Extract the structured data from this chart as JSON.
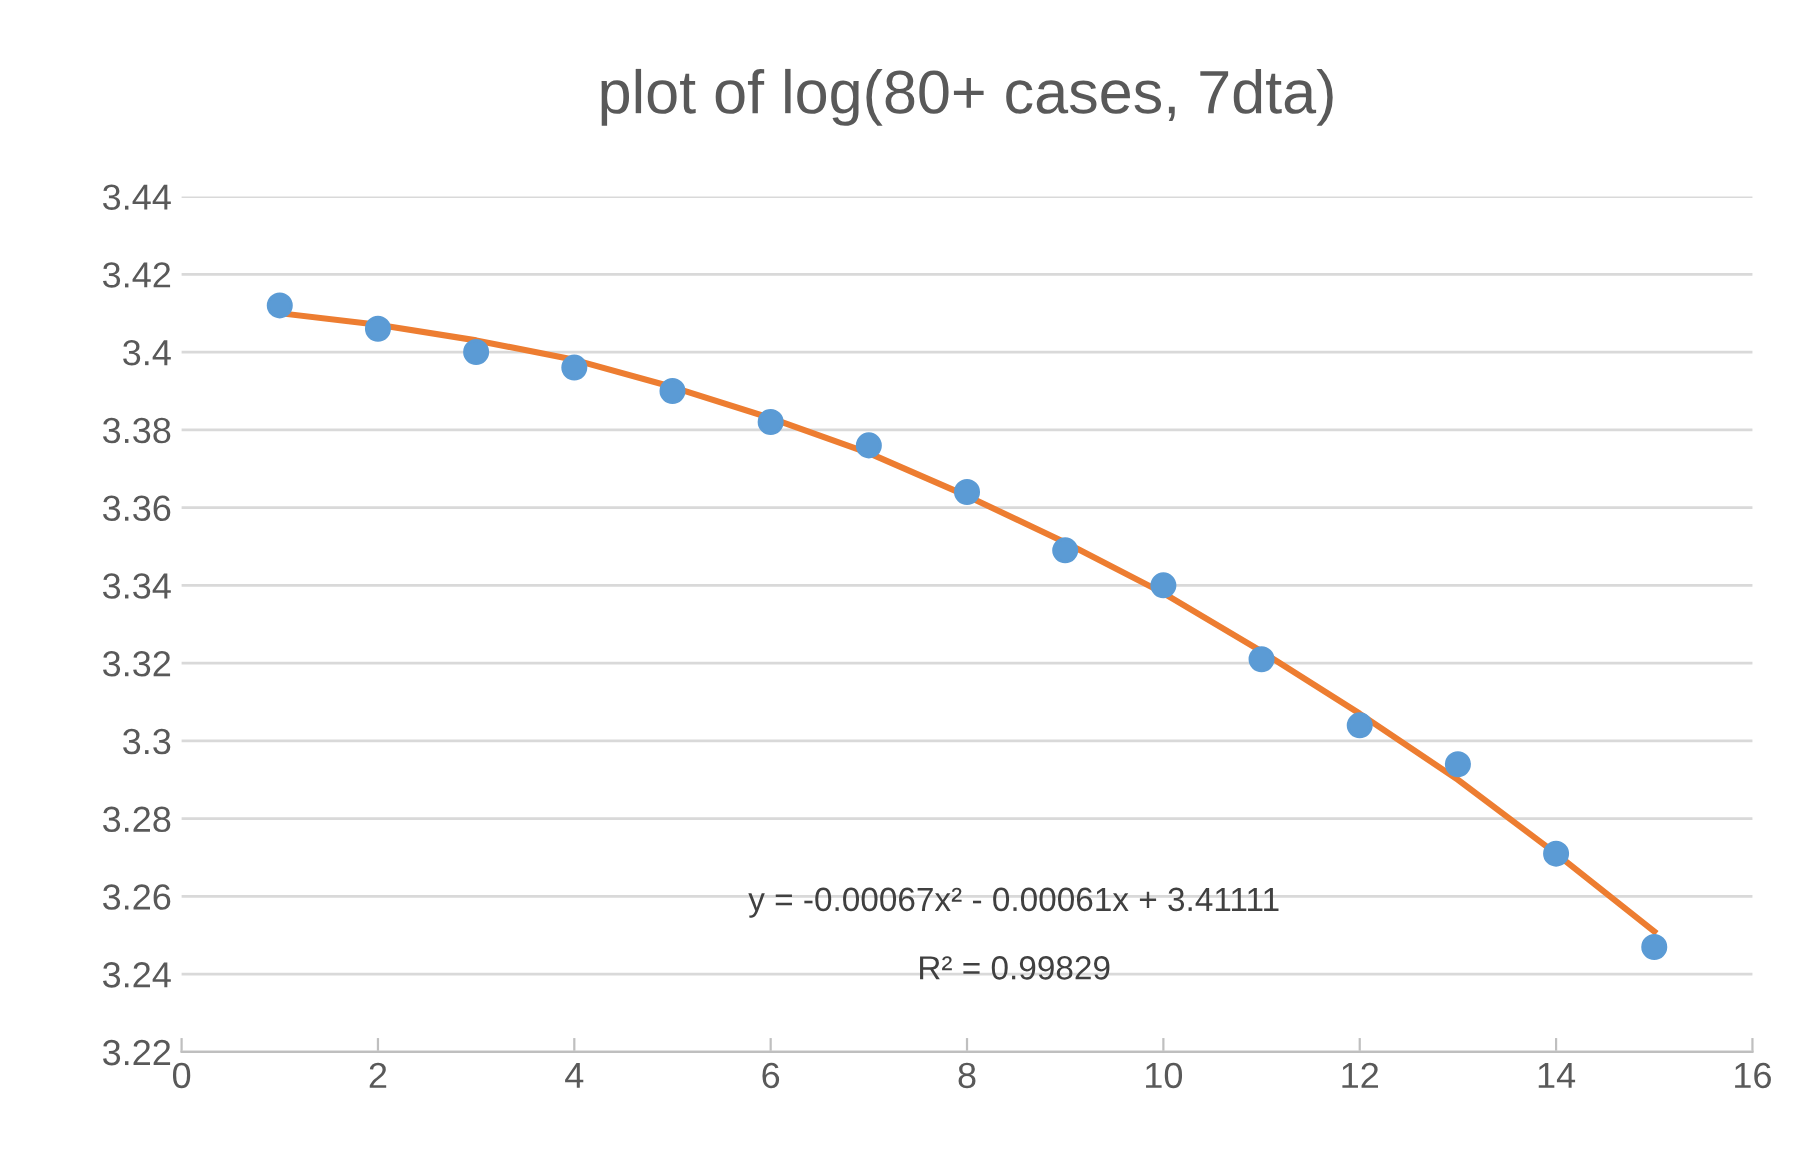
{
  "chart_data": {
    "type": "scatter",
    "title": "plot of log(80+ cases, 7dta)",
    "x": [
      1,
      2,
      3,
      4,
      5,
      6,
      7,
      8,
      9,
      10,
      11,
      12,
      13,
      14,
      15
    ],
    "series": [
      {
        "color": "#5b9bd5",
        "marker": "circle",
        "values": [
          3.412,
          3.406,
          3.4,
          3.396,
          3.39,
          3.382,
          3.376,
          3.364,
          3.349,
          3.34,
          3.321,
          3.304,
          3.294,
          3.271,
          3.247
        ]
      },
      {
        "type": "line",
        "marker": "none",
        "color": "#ed7d31",
        "x": [
          1,
          2,
          3,
          4,
          5,
          6,
          7,
          8,
          9,
          10,
          11,
          12,
          13,
          14,
          15
        ],
        "values": [
          3.41,
          3.407,
          3.403,
          3.398,
          3.391,
          3.383,
          3.374,
          3.363,
          3.351,
          3.338,
          3.323,
          3.307,
          3.29,
          3.271,
          3.251
        ]
      }
    ],
    "xlim": [
      0,
      16
    ],
    "xticks": [
      0,
      2,
      4,
      6,
      8,
      10,
      12,
      14,
      16
    ],
    "ylim": [
      3.22,
      3.44
    ],
    "yticks": [
      {
        "value": 3.22,
        "label": "3.22"
      },
      {
        "value": 3.24,
        "label": "3.24"
      },
      {
        "value": 3.26,
        "label": "3.26"
      },
      {
        "value": 3.28,
        "label": "3.28"
      },
      {
        "value": 3.3,
        "label": "3.3"
      },
      {
        "value": 3.32,
        "label": "3.32"
      },
      {
        "value": 3.34,
        "label": "3.34"
      },
      {
        "value": 3.36,
        "label": "3.36"
      },
      {
        "value": 3.38,
        "label": "3.38"
      },
      {
        "value": 3.4,
        "label": "3.4"
      },
      {
        "value": 3.42,
        "label": "3.42"
      },
      {
        "value": 3.44,
        "label": "3.44"
      }
    ],
    "grid": "y",
    "annotations": [
      "y = -0.00067x² - 0.00061x + 3.41111",
      "R² = 0.99829"
    ]
  }
}
